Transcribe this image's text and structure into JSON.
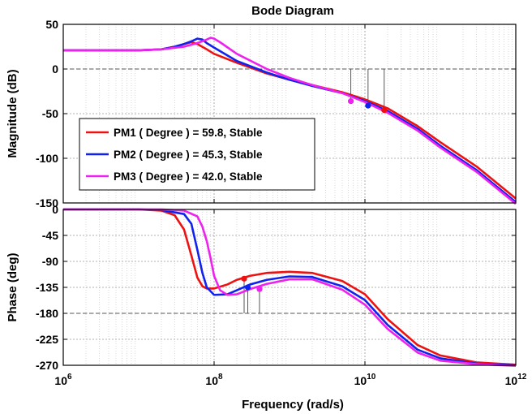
{
  "chart_data": {
    "type": "line",
    "title": "Bode Diagram",
    "xlabel": "Frequency  (rad/s)",
    "x_scale": "log",
    "xlim": [
      1000000,
      1000000000000
    ],
    "x_ticks": [
      {
        "value": 1000000,
        "base": "10",
        "exp": "6"
      },
      {
        "value": 100000000,
        "base": "10",
        "exp": "8"
      },
      {
        "value": 10000000000,
        "base": "10",
        "exp": "10"
      },
      {
        "value": 1000000000000,
        "base": "10",
        "exp": "12"
      }
    ],
    "grid": true,
    "panels": [
      {
        "id": "magnitude",
        "ylabel": "Magnitude (dB)",
        "ylim": [
          -150,
          50
        ],
        "yticks": [
          50,
          0,
          -50,
          -100,
          -150
        ],
        "ref_line": 0,
        "legend_position": "bottom-left",
        "series": [
          {
            "name": "PM1 ( Degree ) = 59.8, Stable",
            "color": "#ee1111",
            "x": [
              1000000,
              10000000,
              20000000,
              30000000,
              40000000,
              50000000,
              60000000,
              80000000,
              100000000,
              200000000,
              500000000,
              1000000000,
              2000000000,
              5000000000,
              10000000000,
              20000000000,
              50000000000,
              100000000000,
              300000000000,
              1000000000000
            ],
            "y": [
              21,
              21,
              22,
              25,
              28,
              30,
              28,
              22,
              17,
              7,
              -5,
              -12,
              -18,
              -26,
              -34,
              -44,
              -64,
              -82,
              -109,
              -145
            ]
          },
          {
            "name": "PM2 ( Degree ) = 45.3, Stable",
            "color": "#1122ee",
            "x": [
              1000000,
              10000000,
              20000000,
              30000000,
              40000000,
              50000000,
              60000000,
              70000000,
              80000000,
              100000000,
              200000000,
              500000000,
              1000000000,
              2000000000,
              5000000000,
              10000000000,
              20000000000,
              50000000000,
              100000000000,
              300000000000,
              1000000000000
            ],
            "y": [
              21,
              21,
              22,
              25,
              28,
              31,
              34,
              33,
              29,
              24,
              9,
              -4,
              -12,
              -19,
              -27,
              -36,
              -47,
              -67,
              -86,
              -113,
              -149
            ]
          },
          {
            "name": "PM3 ( Degree ) = 42.0, Stable",
            "color": "#ee22ee",
            "x": [
              1000000,
              10000000,
              20000000,
              40000000,
              60000000,
              80000000,
              90000000,
              100000000,
              120000000,
              200000000,
              500000000,
              1000000000,
              2000000000,
              5000000000,
              10000000000,
              20000000000,
              50000000000,
              100000000000,
              300000000000,
              1000000000000
            ],
            "y": [
              21,
              21,
              22,
              25,
              29,
              33,
              35,
              34,
              30,
              17,
              0,
              -10,
              -18,
              -27,
              -37,
              -49,
              -69,
              -88,
              -115,
              -151
            ]
          }
        ],
        "markers": [
          {
            "series": 0,
            "x": 18000000000,
            "y": -46
          },
          {
            "series": 1,
            "x": 11000000000,
            "y": -41
          },
          {
            "series": 2,
            "x": 6500000000,
            "y": -36
          }
        ],
        "stems": [
          {
            "x": 6500000000,
            "from": 0,
            "to": -36
          },
          {
            "x": 11000000000,
            "from": 0,
            "to": -41
          },
          {
            "x": 18000000000,
            "from": 0,
            "to": -46
          }
        ]
      },
      {
        "id": "phase",
        "ylabel": "Phase (deg)",
        "ylim": [
          -270,
          0
        ],
        "yticks": [
          0,
          -45,
          -90,
          -135,
          -180,
          -225,
          -270
        ],
        "ref_line": -180,
        "series": [
          {
            "name": "PM1 ( Degree ) = 59.8, Stable",
            "color": "#ee1111",
            "x": [
              1000000,
              10000000,
              20000000,
              30000000,
              40000000,
              50000000,
              60000000,
              70000000,
              80000000,
              100000000,
              150000000,
              200000000,
              300000000,
              500000000,
              1000000000,
              2000000000,
              5000000000,
              10000000000,
              20000000000,
              50000000000,
              100000000000,
              300000000000,
              1000000000000
            ],
            "y": [
              0,
              0,
              -2,
              -10,
              -35,
              -80,
              -118,
              -133,
              -137,
              -137,
              -130,
              -122,
              -115,
              -110,
              -108,
              -110,
              -124,
              -147,
              -190,
              -235,
              -253,
              -265,
              -269
            ]
          },
          {
            "name": "PM2 ( Degree ) = 45.3, Stable",
            "color": "#1122ee",
            "x": [
              1000000,
              10000000,
              20000000,
              40000000,
              50000000,
              60000000,
              70000000,
              80000000,
              100000000,
              150000000,
              200000000,
              300000000,
              500000000,
              1000000000,
              2000000000,
              5000000000,
              10000000000,
              20000000000,
              50000000000,
              100000000000,
              300000000000,
              1000000000000
            ],
            "y": [
              0,
              0,
              -1,
              -8,
              -25,
              -70,
              -110,
              -135,
              -148,
              -147,
              -140,
              -130,
              -122,
              -116,
              -117,
              -133,
              -157,
              -200,
              -243,
              -258,
              -267,
              -270
            ]
          },
          {
            "name": "PM3 ( Degree ) = 42.0, Stable",
            "color": "#ee22ee",
            "x": [
              1000000,
              10000000,
              20000000,
              40000000,
              60000000,
              70000000,
              80000000,
              90000000,
              100000000,
              120000000,
              150000000,
              200000000,
              300000000,
              500000000,
              1000000000,
              2000000000,
              5000000000,
              10000000000,
              20000000000,
              50000000000,
              100000000000,
              300000000000,
              1000000000000
            ],
            "y": [
              0,
              0,
              0,
              -2,
              -12,
              -30,
              -55,
              -85,
              -115,
              -140,
              -148,
              -147,
              -138,
              -129,
              -121,
              -121,
              -139,
              -165,
              -207,
              -248,
              -262,
              -268,
              -271
            ]
          }
        ],
        "markers": [
          {
            "series": 0,
            "x": 250000000,
            "y": -120
          },
          {
            "series": 1,
            "x": 280000000,
            "y": -135
          },
          {
            "series": 2,
            "x": 400000000,
            "y": -138
          }
        ],
        "stems": [
          {
            "x": 250000000,
            "from": -180,
            "to": -120
          },
          {
            "x": 280000000,
            "from": -180,
            "to": -135
          },
          {
            "x": 400000000,
            "from": -180,
            "to": -138
          }
        ]
      }
    ]
  }
}
